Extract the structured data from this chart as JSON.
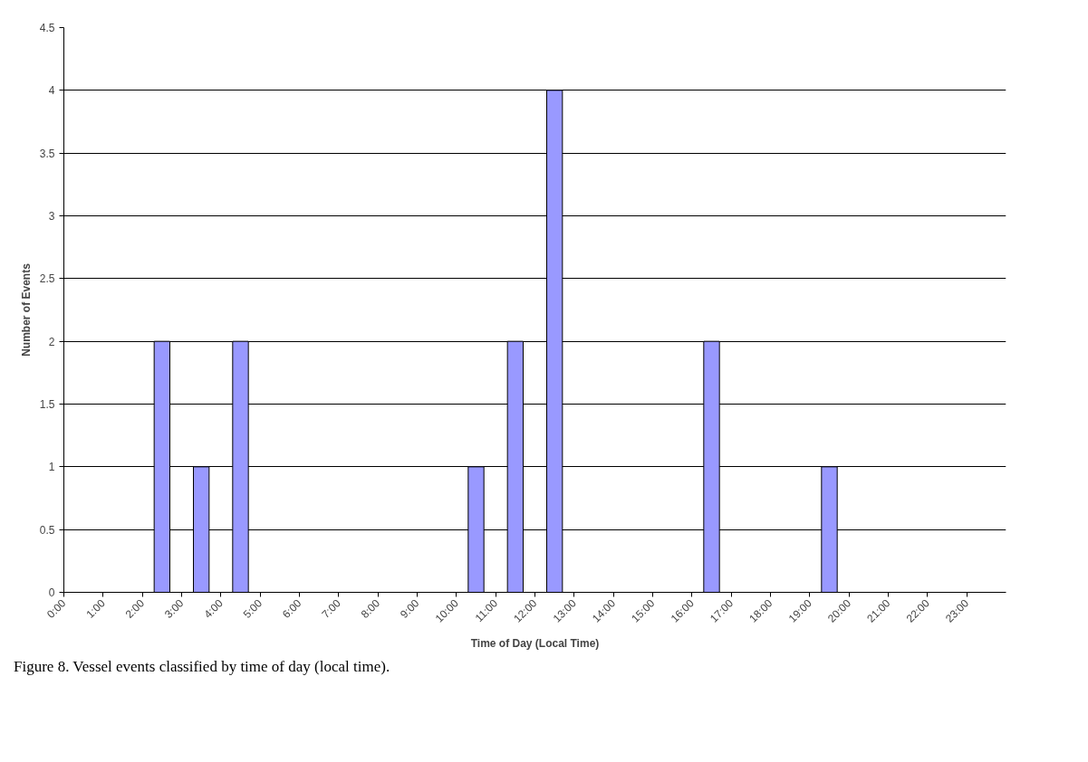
{
  "chart_data": {
    "type": "histogram",
    "xlabel": "Time of Day (Local Time)",
    "ylabel": "Number of Events",
    "bins": [
      0,
      1,
      2,
      3,
      4,
      5,
      6,
      7,
      8,
      9,
      10,
      11,
      12,
      13,
      14,
      15,
      16,
      17,
      18,
      19,
      20,
      21,
      22,
      23,
      24
    ],
    "values": [
      0,
      0,
      2,
      1,
      2,
      0,
      0,
      0,
      0,
      0,
      1,
      2,
      4,
      0,
      0,
      0,
      2,
      0,
      0,
      1,
      0,
      0,
      0,
      0
    ],
    "color": "#9999ff",
    "xlim": [
      0,
      24
    ],
    "xticks": [
      {
        "value": 0,
        "label": "0:00"
      },
      {
        "value": 1,
        "label": "1:00"
      },
      {
        "value": 2,
        "label": "2:00"
      },
      {
        "value": 3,
        "label": "3:00"
      },
      {
        "value": 4,
        "label": "4:00"
      },
      {
        "value": 5,
        "label": "5:00"
      },
      {
        "value": 6,
        "label": "6:00"
      },
      {
        "value": 7,
        "label": "7:00"
      },
      {
        "value": 8,
        "label": "8:00"
      },
      {
        "value": 9,
        "label": "9:00"
      },
      {
        "value": 10,
        "label": "10:00"
      },
      {
        "value": 11,
        "label": "11:00"
      },
      {
        "value": 12,
        "label": "12:00"
      },
      {
        "value": 13,
        "label": "13:00"
      },
      {
        "value": 14,
        "label": "14:00"
      },
      {
        "value": 15,
        "label": "15:00"
      },
      {
        "value": 16,
        "label": "16:00"
      },
      {
        "value": 17,
        "label": "17:00"
      },
      {
        "value": 18,
        "label": "18:00"
      },
      {
        "value": 19,
        "label": "19:00"
      },
      {
        "value": 20,
        "label": "20:00"
      },
      {
        "value": 21,
        "label": "21:00"
      },
      {
        "value": 22,
        "label": "22:00"
      },
      {
        "value": 23,
        "label": "23:00"
      }
    ],
    "ylim": [
      0,
      4.5
    ],
    "yticks": [
      0,
      0.5,
      1,
      1.5,
      2,
      2.5,
      3,
      3.5,
      4,
      4.5
    ],
    "grid": "y",
    "annotations": [
      "Figure 8.  Vessel events classified by time of day (local time)."
    ]
  }
}
